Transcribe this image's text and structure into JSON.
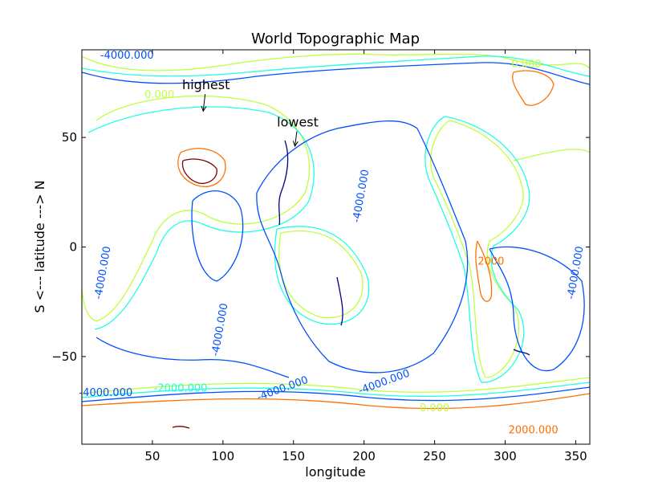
{
  "chart_data": {
    "type": "contour",
    "title": "World Topographic Map",
    "xlabel": "longitude",
    "ylabel": "S <---  latitude  ---> N",
    "xlim": [
      0,
      360
    ],
    "ylim": [
      -90,
      90
    ],
    "xticks": [
      "50",
      "100",
      "150",
      "200",
      "250",
      "300",
      "350"
    ],
    "yticks": [
      "50",
      "0",
      "−50"
    ],
    "grid": false,
    "levels": [
      {
        "value": -6000,
        "color": "#00008f"
      },
      {
        "value": -4000,
        "color": "#0050ff"
      },
      {
        "value": -2000,
        "color": "#20ffdf"
      },
      {
        "value": 0,
        "color": "#bfff3f"
      },
      {
        "value": 2000,
        "color": "#ff6f00"
      },
      {
        "value": 4000,
        "color": "#7f0000"
      }
    ],
    "contour_labels": [
      {
        "text": "-4000.000",
        "lon": 32,
        "lat": 86,
        "level": -4000
      },
      {
        "text": "0.000",
        "lon": 55,
        "lat": 68,
        "level": 0
      },
      {
        "text": "0.000",
        "lon": 315,
        "lat": 82,
        "level": 0
      },
      {
        "text": "-4000.000",
        "lon": 17,
        "lat": -12,
        "level": -4000
      },
      {
        "text": "-4000.000",
        "lon": 17,
        "lat": -68,
        "level": -4000
      },
      {
        "text": "-2000.000",
        "lon": 70,
        "lat": -66,
        "level": -2000
      },
      {
        "text": "-4000.000",
        "lon": 143,
        "lat": -66,
        "level": -4000
      },
      {
        "text": "-4000.000",
        "lon": 215,
        "lat": -63,
        "level": -4000
      },
      {
        "text": "-4000.000",
        "lon": 200,
        "lat": 23,
        "level": -4000
      },
      {
        "text": "0.000",
        "lon": 250,
        "lat": -75,
        "level": 0
      },
      {
        "text": "2000.000",
        "lon": 320,
        "lat": -85,
        "level": 2000
      },
      {
        "text": "-4000.000",
        "lon": 352,
        "lat": -12,
        "level": -4000
      },
      {
        "text": "2000",
        "lon": 290,
        "lat": -8,
        "level": 2000
      },
      {
        "text": "-4000.000",
        "lon": 100,
        "lat": -38,
        "level": -4000
      }
    ],
    "annotations": [
      {
        "text": "highest",
        "lon": 88,
        "lat": 72,
        "arrow_to": [
          86,
          62
        ]
      },
      {
        "text": "lowest",
        "lon": 153,
        "lat": 55,
        "arrow_to": [
          151,
          46
        ]
      }
    ]
  }
}
